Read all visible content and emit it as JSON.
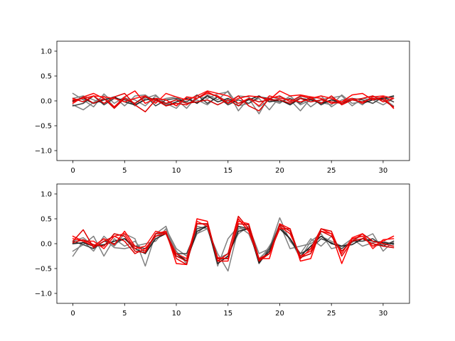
{
  "chart_data": [
    {
      "type": "line",
      "xlim": [
        -1.55,
        32.55
      ],
      "ylim": [
        -1.2,
        1.2
      ],
      "xticks": [
        0,
        5,
        10,
        15,
        20,
        25,
        30
      ],
      "yticks": [
        -1.0,
        -0.5,
        0.0,
        0.5,
        1.0
      ],
      "xtick_labels": [
        "0",
        "5",
        "10",
        "15",
        "20",
        "25",
        "30"
      ],
      "ytick_labels": [
        "−1.0",
        "−0.5",
        "0.0",
        "0.5",
        "1.0"
      ],
      "grid": false,
      "x": [
        0,
        1,
        2,
        3,
        4,
        5,
        6,
        7,
        8,
        9,
        10,
        11,
        12,
        13,
        14,
        15,
        16,
        17,
        18,
        19,
        20,
        21,
        22,
        23,
        24,
        25,
        26,
        27,
        28,
        29,
        30,
        31
      ],
      "series": [
        {
          "color": "#808080",
          "values": [
            0.15,
            0.02,
            -0.12,
            0.14,
            -0.05,
            0.08,
            -0.1,
            0.05,
            0.12,
            -0.08,
            0.03,
            -0.15,
            0.1,
            0.05,
            0.14,
            0.18,
            -0.2,
            0.05,
            -0.26,
            0.1,
            0.02,
            -0.05,
            0.08,
            -0.12,
            0.03,
            0.06,
            0.1,
            -0.1,
            0.05,
            0.02,
            -0.08,
            0.05
          ]
        },
        {
          "color": "#808080",
          "values": [
            -0.08,
            -0.18,
            -0.03,
            0.1,
            -0.12,
            0.05,
            0.02,
            -0.1,
            0.1,
            -0.05,
            -0.15,
            0.08,
            -0.05,
            0.12,
            0.02,
            0.2,
            -0.1,
            -0.05,
            0.05,
            -0.18,
            0.08,
            0.02,
            -0.2,
            0.05,
            -0.03,
            -0.08,
            0.12,
            -0.05,
            -0.02,
            0.08,
            0.05,
            -0.1
          ]
        },
        {
          "color": "#808080",
          "values": [
            0.05,
            0.1,
            0.02,
            -0.05,
            0.08,
            -0.1,
            0.1,
            0.12,
            -0.02,
            0.05,
            0.08,
            -0.05,
            0.02,
            -0.08,
            0.1,
            -0.02,
            0.1,
            0.08,
            -0.12,
            0.02,
            -0.05,
            0.1,
            -0.08,
            0.02,
            0.1,
            -0.12,
            0.02,
            0.05,
            -0.08,
            0.1,
            0.02,
            0.08
          ]
        },
        {
          "color": "#404040",
          "values": [
            -0.1,
            -0.05,
            0.1,
            -0.08,
            0.05,
            0.02,
            -0.05,
            0.1,
            -0.1,
            0.02,
            0.05,
            -0.02,
            0.12,
            -0.05,
            0.08,
            -0.08,
            0.02,
            -0.05,
            0.08,
            0.05,
            -0.02,
            0.05,
            -0.05,
            0.08,
            -0.08,
            0.02,
            -0.05,
            0.05,
            0.02,
            -0.05,
            0.08,
            -0.02
          ]
        },
        {
          "color": "#202020",
          "values": [
            0.0,
            0.05,
            -0.05,
            0.02,
            0.08,
            -0.02,
            -0.08,
            0.02,
            0.05,
            -0.1,
            -0.02,
            0.05,
            -0.05,
            0.1,
            -0.02,
            0.05,
            -0.05,
            0.02,
            0.1,
            -0.02,
            0.02,
            -0.08,
            0.05,
            0.02,
            -0.05,
            0.02,
            -0.02,
            0.05,
            -0.05,
            0.02,
            0.05,
            0.1
          ]
        },
        {
          "color": "#ff0000",
          "values": [
            -0.05,
            0.08,
            0.15,
            0.05,
            -0.12,
            0.08,
            0.2,
            -0.05,
            0.05,
            0.02,
            -0.1,
            0.08,
            0.05,
            0.15,
            0.1,
            -0.05,
            0.05,
            0.1,
            0.08,
            0.02,
            0.2,
            0.1,
            0.12,
            0.08,
            0.05,
            -0.05,
            -0.02,
            0.12,
            0.15,
            0.02,
            0.08,
            -0.15
          ]
        },
        {
          "color": "#e00000",
          "values": [
            0.05,
            -0.02,
            0.1,
            -0.05,
            0.08,
            0.15,
            -0.08,
            -0.22,
            0.02,
            -0.1,
            -0.05,
            -0.08,
            0.05,
            0.18,
            0.08,
            -0.05,
            0.1,
            -0.1,
            -0.2,
            0.05,
            0.1,
            -0.02,
            0.1,
            0.05,
            -0.05,
            0.1,
            -0.08,
            0.02,
            0.05,
            0.1,
            -0.02,
            0.05
          ]
        },
        {
          "color": "#ff1010",
          "values": [
            0.02,
            0.05,
            0.1,
            0.08,
            0.05,
            -0.02,
            0.05,
            0.1,
            -0.05,
            0.15,
            0.08,
            0.02,
            0.1,
            0.2,
            0.15,
            0.1,
            -0.05,
            0.05,
            -0.1,
            0.1,
            0.05,
            0.02,
            -0.02,
            0.05,
            0.1,
            0.05,
            -0.02,
            0.05,
            -0.05,
            0.08,
            0.1,
            0.05
          ]
        },
        {
          "color": "#d00000",
          "values": [
            -0.02,
            0.08,
            -0.05,
            0.05,
            -0.15,
            0.05,
            -0.05,
            0.08,
            0.02,
            -0.05,
            0.02,
            -0.05,
            -0.02,
            0.02,
            -0.08,
            0.02,
            -0.1,
            0.05,
            -0.02,
            0.02,
            0.02,
            -0.05,
            0.05,
            -0.02,
            0.02,
            -0.02,
            -0.05,
            0.02,
            -0.02,
            0.05,
            0.02,
            -0.12
          ]
        }
      ]
    },
    {
      "type": "line",
      "xlim": [
        -1.55,
        32.55
      ],
      "ylim": [
        -1.2,
        1.2
      ],
      "xticks": [
        0,
        5,
        10,
        15,
        20,
        25,
        30
      ],
      "yticks": [
        -1.0,
        -0.5,
        0.0,
        0.5,
        1.0
      ],
      "xtick_labels": [
        "0",
        "5",
        "10",
        "15",
        "20",
        "25",
        "30"
      ],
      "ytick_labels": [
        "−1.0",
        "−0.5",
        "0.0",
        "0.5",
        "1.0"
      ],
      "grid": false,
      "x": [
        0,
        1,
        2,
        3,
        4,
        5,
        6,
        7,
        8,
        9,
        10,
        11,
        12,
        13,
        14,
        15,
        16,
        17,
        18,
        19,
        20,
        21,
        22,
        23,
        24,
        25,
        26,
        27,
        28,
        29,
        30,
        31
      ],
      "series": [
        {
          "color": "#808080",
          "values": [
            -0.25,
            0.05,
            -0.15,
            0.15,
            -0.05,
            0.2,
            0.1,
            -0.45,
            0.2,
            0.35,
            -0.25,
            -0.3,
            0.2,
            0.4,
            -0.45,
            0.1,
            0.35,
            0.2,
            -0.3,
            -0.1,
            0.52,
            0.05,
            -0.2,
            0.1,
            -0.05,
            0.15,
            -0.15,
            0.05,
            0.1,
            0.2,
            -0.15,
            0.05
          ]
        },
        {
          "color": "#808080",
          "values": [
            -0.15,
            -0.02,
            0.15,
            -0.25,
            0.1,
            -0.05,
            0.05,
            -0.2,
            0.15,
            0.25,
            -0.15,
            -0.4,
            0.35,
            0.3,
            -0.2,
            -0.55,
            0.3,
            0.3,
            -0.35,
            -0.05,
            0.3,
            0.1,
            -0.3,
            0.05,
            0.2,
            -0.1,
            -0.05,
            0.1,
            -0.05,
            0.02,
            0.05,
            -0.02
          ]
        },
        {
          "color": "#808080",
          "values": [
            0.05,
            0.12,
            -0.05,
            0.1,
            -0.08,
            -0.1,
            -0.05,
            0.0,
            0.05,
            0.3,
            -0.1,
            -0.25,
            0.2,
            0.3,
            -0.3,
            -0.2,
            0.2,
            0.35,
            -0.2,
            -0.1,
            0.4,
            -0.1,
            -0.05,
            0.0,
            0.15,
            0.05,
            -0.05,
            0.02,
            0.2,
            -0.05,
            -0.02,
            0.02
          ]
        },
        {
          "color": "#404040",
          "values": [
            0.05,
            -0.02,
            -0.1,
            0.05,
            0.0,
            0.1,
            -0.05,
            -0.1,
            0.15,
            0.2,
            -0.2,
            -0.2,
            0.3,
            0.35,
            -0.3,
            -0.3,
            0.35,
            0.3,
            -0.4,
            -0.1,
            0.35,
            0.1,
            -0.2,
            -0.1,
            0.1,
            0.02,
            -0.1,
            0.05,
            0.05,
            0.1,
            -0.05,
            0.05
          ]
        },
        {
          "color": "#202020",
          "values": [
            0.0,
            0.02,
            -0.05,
            -0.02,
            0.05,
            0.1,
            -0.1,
            -0.2,
            0.1,
            0.2,
            -0.2,
            -0.35,
            0.25,
            0.35,
            -0.4,
            -0.25,
            0.25,
            0.3,
            -0.38,
            -0.15,
            0.3,
            0.1,
            -0.25,
            -0.05,
            0.15,
            0.0,
            -0.05,
            -0.02,
            0.1,
            0.05,
            0.02,
            0.0
          ]
        },
        {
          "color": "#ff0000",
          "values": [
            0.15,
            0.05,
            -0.05,
            0.1,
            -0.02,
            0.25,
            -0.05,
            -0.15,
            0.2,
            0.25,
            -0.4,
            -0.42,
            0.5,
            0.45,
            -0.35,
            -0.35,
            0.5,
            0.25,
            -0.3,
            -0.3,
            0.4,
            0.3,
            -0.35,
            -0.3,
            0.3,
            0.2,
            -0.4,
            0.1,
            0.15,
            -0.05,
            0.05,
            0.15
          ]
        },
        {
          "color": "#e00000",
          "values": [
            0.05,
            0.28,
            -0.08,
            0.05,
            0.15,
            0.05,
            -0.2,
            -0.1,
            0.15,
            0.2,
            -0.3,
            -0.42,
            0.4,
            0.4,
            -0.35,
            -0.2,
            0.55,
            0.3,
            -0.35,
            -0.2,
            0.3,
            0.3,
            -0.3,
            -0.1,
            0.3,
            0.25,
            -0.25,
            0.05,
            0.2,
            0.05,
            0.0,
            -0.05
          ]
        },
        {
          "color": "#ff1010",
          "values": [
            0.1,
            0.05,
            0.05,
            -0.1,
            0.15,
            0.2,
            -0.1,
            -0.05,
            0.25,
            0.2,
            -0.2,
            -0.3,
            0.45,
            0.35,
            -0.28,
            -0.3,
            0.45,
            0.4,
            -0.3,
            -0.2,
            0.35,
            0.2,
            -0.25,
            -0.15,
            0.25,
            0.2,
            -0.2,
            0.12,
            0.2,
            -0.1,
            0.08,
            0.1
          ]
        },
        {
          "color": "#d00000",
          "values": [
            0.02,
            0.08,
            -0.02,
            -0.05,
            0.2,
            0.15,
            -0.15,
            -0.18,
            0.2,
            0.22,
            -0.25,
            -0.35,
            0.4,
            0.4,
            -0.3,
            -0.3,
            0.4,
            0.38,
            -0.32,
            -0.2,
            0.38,
            0.25,
            -0.28,
            -0.2,
            0.25,
            0.15,
            -0.15,
            0.05,
            0.1,
            0.0,
            -0.05,
            -0.08
          ]
        }
      ]
    }
  ]
}
